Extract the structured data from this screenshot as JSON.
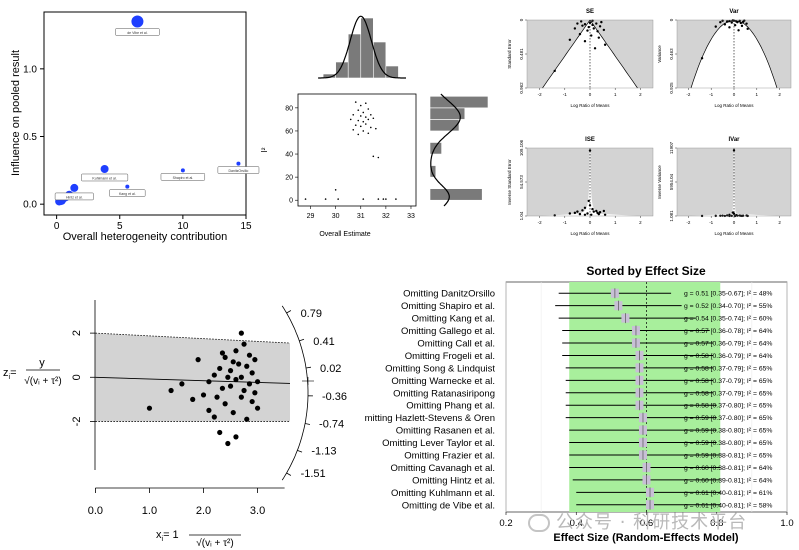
{
  "colors": {
    "blue": "#1f3fff",
    "gray_bar": "#7a7a7a",
    "panel_gray": "#d3d3d3",
    "green": "#a8ef9c",
    "ci_box": "#c8bfd6"
  },
  "watermark": {
    "icon": "wechat-icon",
    "text": "公众号 · 科研技术平台"
  },
  "chart_data": [
    {
      "id": "baujat",
      "type": "scatter",
      "xlabel": "Overall heterogeneity contribution",
      "ylabel": "Influence on pooled result",
      "xlim": [
        -1,
        15
      ],
      "ylim": [
        -0.08,
        1.42
      ],
      "xticks": [
        "0",
        "5",
        "10",
        "15"
      ],
      "yticks": [
        "0.0",
        "0.5",
        "1.0"
      ],
      "xtick_values": [
        0,
        5,
        10,
        15
      ],
      "ytick_values": [
        0,
        0.5,
        1.0
      ],
      "points": [
        {
          "x": 0.2,
          "y": 0.02,
          "r": 4,
          "label": ""
        },
        {
          "x": 0.35,
          "y": 0.03,
          "r": 5,
          "label": ""
        },
        {
          "x": 0.5,
          "y": 0.04,
          "r": 4,
          "label": ""
        },
        {
          "x": 0.7,
          "y": 0.05,
          "r": 4,
          "label": ""
        },
        {
          "x": 1.0,
          "y": 0.07,
          "r": 4,
          "label": ""
        },
        {
          "x": 1.4,
          "y": 0.12,
          "r": 4,
          "label": "Hintz et al."
        },
        {
          "x": 3.8,
          "y": 0.26,
          "r": 4,
          "label": "Kuhlmann et al."
        },
        {
          "x": 5.6,
          "y": 0.13,
          "r": 2,
          "label": "Kang et al."
        },
        {
          "x": 10.0,
          "y": 0.25,
          "r": 2,
          "label": "Shapiro et al."
        },
        {
          "x": 14.4,
          "y": 0.3,
          "r": 2,
          "label": "DanitzOrsillo"
        },
        {
          "x": 6.4,
          "y": 1.35,
          "r": 6,
          "label": "de Vibe et al."
        }
      ]
    },
    {
      "id": "gosh",
      "type": "scatter",
      "xlabel": "Overall Estimate",
      "ylabel": "I²",
      "xlim": [
        28.5,
        33.2
      ],
      "ylim": [
        -5,
        92
      ],
      "xticks": [
        "29",
        "30",
        "31",
        "32",
        "33"
      ],
      "yticks": [
        "0",
        "20",
        "40",
        "60",
        "80"
      ],
      "xtick_values": [
        29,
        30,
        31,
        32,
        33
      ],
      "ytick_values": [
        0,
        20,
        40,
        60,
        80
      ],
      "points": [
        {
          "x": 30.8,
          "y": 85
        },
        {
          "x": 31.0,
          "y": 82
        },
        {
          "x": 31.2,
          "y": 84
        },
        {
          "x": 30.9,
          "y": 78
        },
        {
          "x": 31.1,
          "y": 76
        },
        {
          "x": 31.3,
          "y": 79
        },
        {
          "x": 30.7,
          "y": 74
        },
        {
          "x": 31.0,
          "y": 73
        },
        {
          "x": 31.2,
          "y": 72
        },
        {
          "x": 31.4,
          "y": 74
        },
        {
          "x": 30.6,
          "y": 70
        },
        {
          "x": 30.9,
          "y": 69
        },
        {
          "x": 31.1,
          "y": 68
        },
        {
          "x": 31.3,
          "y": 70
        },
        {
          "x": 31.5,
          "y": 71
        },
        {
          "x": 30.8,
          "y": 65
        },
        {
          "x": 31.0,
          "y": 64
        },
        {
          "x": 31.2,
          "y": 66
        },
        {
          "x": 31.4,
          "y": 63
        },
        {
          "x": 30.7,
          "y": 61
        },
        {
          "x": 31.1,
          "y": 60
        },
        {
          "x": 31.6,
          "y": 62
        },
        {
          "x": 31.3,
          "y": 58
        },
        {
          "x": 30.9,
          "y": 57
        },
        {
          "x": 31.5,
          "y": 38
        },
        {
          "x": 31.7,
          "y": 37
        },
        {
          "x": 30.0,
          "y": 9
        },
        {
          "x": 28.8,
          "y": 1
        },
        {
          "x": 29.6,
          "y": 1
        },
        {
          "x": 30.1,
          "y": 1
        },
        {
          "x": 31.1,
          "y": 1
        },
        {
          "x": 31.7,
          "y": 1
        },
        {
          "x": 31.9,
          "y": 1
        },
        {
          "x": 32.0,
          "y": 1
        },
        {
          "x": 32.4,
          "y": 1
        }
      ],
      "hist_x": {
        "bins": [
          29.5,
          30.0,
          30.5,
          31.0,
          31.5,
          32.0,
          32.5
        ],
        "counts": [
          2,
          8,
          22,
          30,
          18,
          6
        ]
      },
      "hist_y": {
        "bins": [
          0,
          10,
          20,
          30,
          40,
          50,
          60,
          70,
          80,
          90
        ],
        "counts": [
          9,
          0,
          1,
          0,
          2,
          0,
          5,
          6,
          10,
          2
        ]
      }
    },
    {
      "id": "funnel-se",
      "type": "scatter",
      "title": "SE",
      "xlabel": "Log Ratio of Means",
      "ylabel": "Standard Error",
      "xlim": [
        -2.5,
        2.5
      ],
      "ylim": [
        0,
        0.962
      ],
      "xticks": [
        "-2",
        "-1",
        "0",
        "1",
        "2"
      ],
      "yticks": [
        "0",
        "0.481",
        "0.962"
      ],
      "y_reversed": true,
      "points": [
        [
          -0.5,
          0.05
        ],
        [
          -0.3,
          0.08
        ],
        [
          -0.2,
          0.06
        ],
        [
          0.0,
          0.04
        ],
        [
          0.1,
          0.07
        ],
        [
          0.25,
          0.05
        ],
        [
          0.4,
          0.09
        ],
        [
          -0.6,
          0.12
        ],
        [
          -0.1,
          0.15
        ],
        [
          0.15,
          0.12
        ],
        [
          0.3,
          0.16
        ],
        [
          0.55,
          0.14
        ],
        [
          -0.4,
          0.2
        ],
        [
          0.05,
          0.22
        ],
        [
          0.35,
          0.25
        ],
        [
          -0.2,
          0.3
        ],
        [
          0.6,
          0.35
        ],
        [
          -0.8,
          0.28
        ],
        [
          -1.4,
          0.72
        ],
        [
          0.2,
          0.4
        ],
        [
          -0.05,
          0.1
        ],
        [
          0.45,
          0.03
        ],
        [
          -0.35,
          0.02
        ],
        [
          0.1,
          0.01
        ]
      ]
    },
    {
      "id": "funnel-var",
      "type": "scatter",
      "title": "Var",
      "xlabel": "Log Ratio of Means",
      "ylabel": "Variance",
      "xlim": [
        -2.5,
        2.5
      ],
      "ylim": [
        0,
        0.925
      ],
      "xticks": [
        "-2",
        "-1",
        "0",
        "1",
        "2"
      ],
      "yticks": [
        "0",
        "0.463",
        "0.925"
      ],
      "y_reversed": true,
      "points": [
        [
          -0.5,
          0.01
        ],
        [
          -0.3,
          0.02
        ],
        [
          -0.2,
          0.015
        ],
        [
          0.0,
          0.01
        ],
        [
          0.1,
          0.02
        ],
        [
          0.25,
          0.012
        ],
        [
          0.4,
          0.025
        ],
        [
          -0.6,
          0.03
        ],
        [
          -0.1,
          0.035
        ],
        [
          0.15,
          0.03
        ],
        [
          0.3,
          0.04
        ],
        [
          0.55,
          0.05
        ],
        [
          -0.4,
          0.06
        ],
        [
          0.05,
          0.07
        ],
        [
          0.35,
          0.08
        ],
        [
          -0.2,
          0.1
        ],
        [
          0.6,
          0.12
        ],
        [
          -0.8,
          0.09
        ],
        [
          -1.4,
          0.52
        ],
        [
          0.2,
          0.14
        ],
        [
          -0.05,
          0.005
        ],
        [
          0.45,
          0.008
        ]
      ]
    },
    {
      "id": "funnel-ise",
      "type": "scatter",
      "title": "ISE",
      "xlabel": "Log Ratio of Means",
      "ylabel": "Inverse Standard Error",
      "xlim": [
        -2.5,
        2.5
      ],
      "ylim": [
        1.04,
        109.106
      ],
      "xticks": [
        "-2",
        "-1",
        "0",
        "1",
        "2"
      ],
      "yticks": [
        "1.04",
        "54.573",
        "109.106"
      ],
      "points": [
        [
          -0.5,
          8
        ],
        [
          -0.3,
          10
        ],
        [
          -0.2,
          14
        ],
        [
          0.0,
          18
        ],
        [
          0.1,
          12
        ],
        [
          0.25,
          9
        ],
        [
          0.4,
          7
        ],
        [
          -0.6,
          6
        ],
        [
          -0.1,
          5
        ],
        [
          0.15,
          8
        ],
        [
          0.3,
          6
        ],
        [
          0.55,
          9
        ],
        [
          -0.4,
          4
        ],
        [
          0.05,
          3
        ],
        [
          0.35,
          4
        ],
        [
          -0.2,
          3
        ],
        [
          0.6,
          3
        ],
        [
          -0.8,
          5
        ],
        [
          -1.4,
          2
        ],
        [
          0.0,
          105
        ],
        [
          -0.05,
          25
        ]
      ]
    },
    {
      "id": "funnel-ivar",
      "type": "scatter",
      "title": "IVar",
      "xlabel": "Log Ratio of Means",
      "ylabel": "Inverse Variance",
      "xlim": [
        -2.5,
        2.5
      ],
      "ylim": [
        1.081,
        11907
      ],
      "xticks": [
        "-2",
        "-1",
        "0",
        "1",
        "2"
      ],
      "yticks": [
        "1.081",
        "5954.04",
        "11907"
      ],
      "points": [
        [
          -0.5,
          60
        ],
        [
          -0.3,
          100
        ],
        [
          -0.2,
          200
        ],
        [
          0.0,
          400
        ],
        [
          0.1,
          150
        ],
        [
          0.25,
          80
        ],
        [
          0.4,
          50
        ],
        [
          -0.6,
          40
        ],
        [
          -0.1,
          30
        ],
        [
          0.15,
          60
        ],
        [
          0.3,
          40
        ],
        [
          0.55,
          80
        ],
        [
          -0.4,
          20
        ],
        [
          0.05,
          10
        ],
        [
          0.35,
          15
        ],
        [
          -0.2,
          10
        ],
        [
          0.6,
          10
        ],
        [
          -0.8,
          25
        ],
        [
          -1.4,
          4
        ],
        [
          0.0,
          11500
        ],
        [
          -0.05,
          600
        ]
      ]
    },
    {
      "id": "radial",
      "type": "scatter",
      "ylabel_z": "z",
      "ylabel_sub": "i",
      "ylabel_eq": "=",
      "ylabel_num": "y",
      "ylabel_den": "√(vᵢ + τ²)",
      "xlabel_x": "x",
      "xlabel_sub": "i",
      "xlabel_eq": "= 1",
      "xlabel_den": "√(vᵢ + τ²)",
      "xlim": [
        -0.1,
        3.6
      ],
      "ylim": [
        -4.2,
        3.5
      ],
      "xticks": [
        "0.0",
        "1.0",
        "2.0",
        "3.0"
      ],
      "xtick_values": [
        0,
        1,
        2,
        3
      ],
      "yticks": [
        "-2",
        "0",
        "2"
      ],
      "ytick_values": [
        -2,
        0,
        2
      ],
      "arc_ticks": [
        "0.79",
        "0.41",
        "0.02",
        "-0.36",
        "-0.74",
        "-1.13",
        "-1.51"
      ],
      "points": [
        [
          1.0,
          -1.4
        ],
        [
          1.4,
          -0.6
        ],
        [
          1.6,
          -0.3
        ],
        [
          1.8,
          -1.0
        ],
        [
          1.9,
          0.8
        ],
        [
          2.0,
          -0.8
        ],
        [
          2.1,
          -0.2
        ],
        [
          2.1,
          -1.5
        ],
        [
          2.2,
          0.1
        ],
        [
          2.2,
          -1.8
        ],
        [
          2.3,
          -2.5
        ],
        [
          2.3,
          0.4
        ],
        [
          2.35,
          -0.5
        ],
        [
          2.4,
          -1.2
        ],
        [
          2.4,
          0.9
        ],
        [
          2.45,
          -3.0
        ],
        [
          2.5,
          -0.4
        ],
        [
          2.5,
          0.3
        ],
        [
          2.55,
          -1.6
        ],
        [
          2.6,
          -0.1
        ],
        [
          2.6,
          1.2
        ],
        [
          2.6,
          -2.7
        ],
        [
          2.65,
          0.6
        ],
        [
          2.7,
          -0.9
        ],
        [
          2.7,
          0.0
        ],
        [
          2.7,
          2.0
        ],
        [
          2.75,
          -0.6
        ],
        [
          2.75,
          1.5
        ],
        [
          2.8,
          -1.9
        ],
        [
          2.8,
          0.5
        ],
        [
          2.85,
          -0.3
        ],
        [
          2.85,
          1.0
        ],
        [
          2.9,
          -1.1
        ],
        [
          2.9,
          0.2
        ],
        [
          2.95,
          -0.7
        ],
        [
          2.95,
          0.8
        ],
        [
          3.0,
          -0.2
        ],
        [
          3.0,
          -1.4
        ],
        [
          2.45,
          0.0
        ],
        [
          2.55,
          0.7
        ],
        [
          2.25,
          -0.9
        ],
        [
          2.35,
          1.1
        ]
      ]
    },
    {
      "id": "loo-forest",
      "type": "forest",
      "title": "Sorted by Effect Size",
      "xlabel": "Effect Size (Random-Effects Model)",
      "xlim": [
        0.2,
        1.0
      ],
      "xticks": [
        "0.2",
        "0.4",
        "0.6",
        "0.8",
        "1.0"
      ],
      "xtick_values": [
        0.2,
        0.4,
        0.6,
        0.8,
        1.0
      ],
      "green_band": [
        0.38,
        0.81
      ],
      "pooled": 0.6,
      "rows": [
        {
          "label": "Omitting DanitzOrsillo",
          "est": 0.51,
          "lo": 0.35,
          "hi": 0.67,
          "text": "g = 0.51 [0.35-0.67]; I² = 48%"
        },
        {
          "label": "Omitting Shapiro et al.",
          "est": 0.52,
          "lo": 0.34,
          "hi": 0.7,
          "text": "g = 0.52 [0.34-0.70]; I² = 55%"
        },
        {
          "label": "Omitting Kang et al.",
          "est": 0.54,
          "lo": 0.35,
          "hi": 0.74,
          "text": "g = 0.54 [0.35-0.74]; I² = 60%"
        },
        {
          "label": "Omitting Gallego et al.",
          "est": 0.57,
          "lo": 0.36,
          "hi": 0.78,
          "text": "g = 0.57 [0.36-0.78]; I² = 64%"
        },
        {
          "label": "Omitting Call et al.",
          "est": 0.57,
          "lo": 0.36,
          "hi": 0.79,
          "text": "g = 0.57 [0.36-0.79]; I² = 64%"
        },
        {
          "label": "Omitting Frogeli et al.",
          "est": 0.58,
          "lo": 0.36,
          "hi": 0.79,
          "text": "g = 0.58 [0.36-0.79]; I² = 64%"
        },
        {
          "label": "Omitting Song & Lindquist",
          "est": 0.58,
          "lo": 0.37,
          "hi": 0.79,
          "text": "g = 0.58 [0.37-0.79]; I² = 65%"
        },
        {
          "label": "Omitting Warnecke et al.",
          "est": 0.58,
          "lo": 0.37,
          "hi": 0.79,
          "text": "g = 0.58 [0.37-0.79]; I² = 65%"
        },
        {
          "label": "Omitting Ratanasiripong",
          "est": 0.58,
          "lo": 0.37,
          "hi": 0.79,
          "text": "g = 0.58 [0.37-0.79]; I² = 65%"
        },
        {
          "label": "Omitting Phang et al.",
          "est": 0.58,
          "lo": 0.37,
          "hi": 0.8,
          "text": "g = 0.58 [0.37-0.80]; I² = 65%"
        },
        {
          "label": "mitting Hazlett-Stevens & Oren",
          "est": 0.59,
          "lo": 0.37,
          "hi": 0.8,
          "text": "g = 0.59 [0.37-0.80]; I² = 65%"
        },
        {
          "label": "Omitting Rasanen et al.",
          "est": 0.59,
          "lo": 0.38,
          "hi": 0.8,
          "text": "g = 0.59 [0.38-0.80]; I² = 65%"
        },
        {
          "label": "Omitting Lever Taylor et al.",
          "est": 0.59,
          "lo": 0.38,
          "hi": 0.8,
          "text": "g = 0.59 [0.38-0.80]; I² = 65%"
        },
        {
          "label": "Omitting Frazier et al.",
          "est": 0.59,
          "lo": 0.38,
          "hi": 0.81,
          "text": "g = 0.59 [0.38-0.81]; I² = 65%"
        },
        {
          "label": "Omitting Cavanagh et al.",
          "est": 0.6,
          "lo": 0.38,
          "hi": 0.81,
          "text": "g = 0.60 [0.38-0.81]; I² = 64%"
        },
        {
          "label": "Omitting Hintz et al.",
          "est": 0.6,
          "lo": 0.39,
          "hi": 0.81,
          "text": "g = 0.60 [0.39-0.81]; I² = 64%"
        },
        {
          "label": "Omitting Kuhlmann et al.",
          "est": 0.61,
          "lo": 0.4,
          "hi": 0.81,
          "text": "g = 0.61 [0.40-0.81]; I² = 61%"
        },
        {
          "label": "Omitting de Vibe et al.",
          "est": 0.61,
          "lo": 0.4,
          "hi": 0.81,
          "text": "g = 0.61 [0.40-0.81]; I² = 58%"
        }
      ]
    }
  ]
}
